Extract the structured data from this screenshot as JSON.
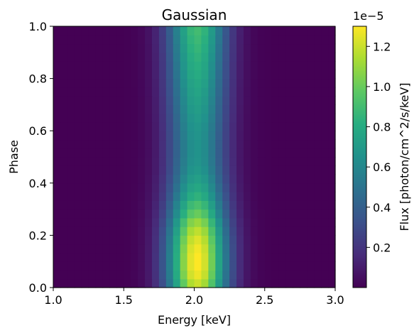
{
  "chart_data": {
    "type": "heatmap",
    "title": "Gaussian",
    "xlabel": "Energy [keV]",
    "ylabel": "Phase",
    "xlim": [
      1.0,
      3.0
    ],
    "ylim": [
      0.0,
      1.0
    ],
    "x_ticks": [
      "1.0",
      "1.5",
      "2.0",
      "2.5",
      "3.0"
    ],
    "y_ticks": [
      "0.0",
      "0.2",
      "0.4",
      "0.6",
      "0.8",
      "1.0"
    ],
    "colormap": "viridis",
    "colorbar": {
      "label": "Flux [photon/cm^2/s/keV]",
      "multiplier": "1e−5",
      "min": 0.0,
      "max": 1.3,
      "ticks": [
        "0.2",
        "0.4",
        "0.6",
        "0.8",
        "1.0",
        "1.2"
      ]
    },
    "grid": false,
    "energy_bins": 40,
    "phase_bins": 30,
    "energy_profile": {
      "type": "gaussian",
      "center": 2.02,
      "sigma": 0.15
    },
    "phase_peak_flux": [
      1.2,
      1.27,
      1.3,
      1.3,
      1.28,
      1.24,
      1.18,
      1.1,
      1.0,
      0.92,
      0.84,
      0.78,
      0.73,
      0.69,
      0.67,
      0.66,
      0.66,
      0.67,
      0.68,
      0.7,
      0.72,
      0.74,
      0.76,
      0.78,
      0.8,
      0.82,
      0.84,
      0.86,
      0.88,
      0.9
    ]
  }
}
